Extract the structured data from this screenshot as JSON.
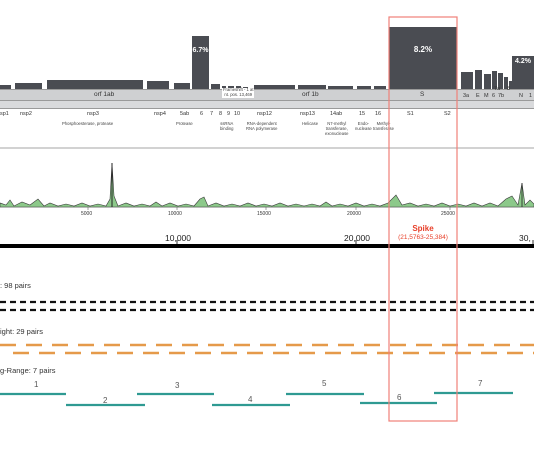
{
  "genome": {
    "orf1ab_label": "orf 1ab",
    "orf1b_label": "orf 1b",
    "s_label": "S",
    "percent_nsp5_region": "6.7%",
    "percent_spike": "8.2%",
    "percent_n": "4.2%",
    "top_genes": {
      "g3a": "3a",
      "gE": "E",
      "gM": "M",
      "g6": "6",
      "g7b": "7b",
      "g7a": "7a",
      "g8": "8",
      "gN": "N",
      "g1": "1"
    },
    "nsp_labels": {
      "nsp1": "sp1",
      "nsp2": "nsp2",
      "nsp3": "nsp3",
      "nsp4": "nsp4",
      "nsp5ab": "5ab",
      "n6": "6",
      "n7": "7",
      "n8": "8",
      "n9": "9",
      "n10": "10",
      "nsp12": "nsp12",
      "nsp13": "nsp13",
      "nsp14ab": "14ab",
      "n15": "15",
      "n16": "16",
      "s1": "S1",
      "s2": "S2"
    },
    "sub_labels": {
      "nsp3_desc": "Phosphoesterase, protease",
      "nsp5_desc": "Protease",
      "frameshift": "Frameshift - 1 at\nnt. pos. 13,469",
      "nsp9_desc": "ssRNA\nbinding",
      "nsp12_desc": "RNA-dependent\nRNA polymerase",
      "nsp13_desc": "Helicase",
      "nsp14_desc": "N7-methyl\ntransferase,\nexonuclease",
      "nsp15_desc": "Endo-\nnuclease",
      "nsp16_desc": "Methyl-\ntransferase"
    }
  },
  "coverage_ticks": [
    "5000",
    "10000",
    "15000",
    "20000",
    "25000"
  ],
  "ruler": {
    "labels": [
      "10,000",
      "20,000",
      "30,"
    ],
    "spike_title": "Spike",
    "spike_range": "(21,5763-25,384)"
  },
  "pairs": {
    "group1_label": ": 98 pairs",
    "group2_label": "ight: 29 pairs",
    "group3_label": "g-Range: 7 pairs",
    "segment_numbers": [
      "1",
      "2",
      "3",
      "4",
      "5",
      "6",
      "7"
    ]
  },
  "colors": {
    "bar": "#4a4c52",
    "highlight": "#f08078",
    "spike_text": "#e8402a",
    "orange": "#e59a4a",
    "teal": "#2f9a92",
    "coverage_fill": "#8cc98a"
  }
}
